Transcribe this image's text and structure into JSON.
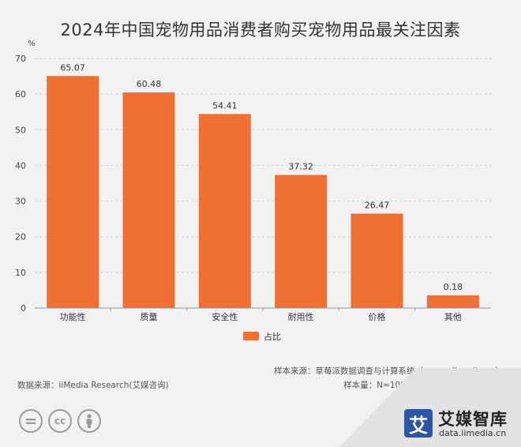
{
  "chart_data": {
    "type": "bar",
    "title": "2024年中国宠物用品消费者购买宠物用品最关注因素",
    "ylabel": "%",
    "ylim": [
      0,
      70
    ],
    "yticks": [
      0,
      10,
      20,
      30,
      40,
      50,
      60,
      70
    ],
    "grid": true,
    "legend_position": "bottom",
    "categories": [
      "功能性",
      "质量",
      "安全性",
      "耐用性",
      "价格",
      "其他"
    ],
    "series": [
      {
        "name": "占比",
        "values": [
          65.07,
          60.48,
          54.41,
          37.32,
          26.47,
          0.18
        ],
        "value_labels": [
          "65.07",
          "60.48",
          "54.41",
          "37.32",
          "26.47",
          "0.18"
        ]
      }
    ],
    "colors": {
      "bar": "#f07033",
      "grid": "#d3d3d3",
      "axis": "#999999"
    }
  },
  "source": {
    "data_source": "数据来源：iiMedia Research(艾媒咨询)",
    "sample_source": "样本来源：草莓派数据调查与计算系统（survey.iimedia.cn）",
    "sample_info": "样本量：N=1092；调研时间：2024年3月"
  },
  "license_icons": [
    {
      "icon": "equals-icon",
      "glyph": "="
    },
    {
      "icon": "cc-icon",
      "glyph": "cc"
    },
    {
      "icon": "person-icon",
      "glyph": ""
    }
  ],
  "brand": {
    "logo_char": "艾",
    "name": "艾媒智库",
    "url": "data.iimedia.cn"
  }
}
